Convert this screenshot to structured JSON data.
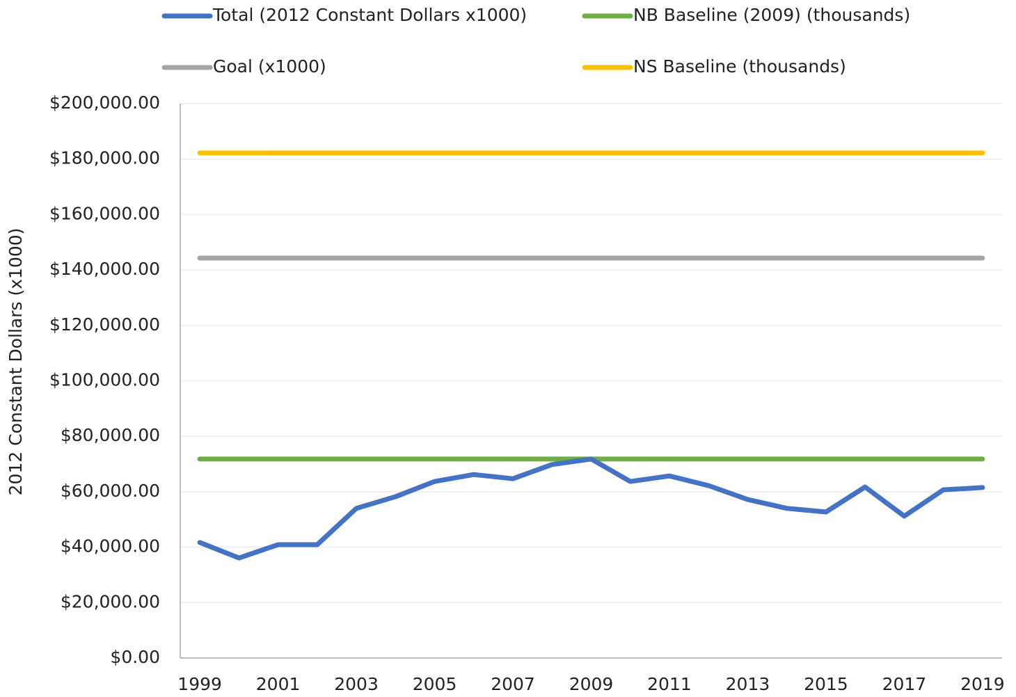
{
  "chart_data": {
    "type": "line",
    "y_label": "2012 Constant Dollars (x1000)",
    "categories": [
      "1999",
      null,
      "2001",
      null,
      "2003",
      null,
      "2005",
      null,
      "2007",
      null,
      "2009",
      null,
      "2011",
      null,
      "2013",
      null,
      "2015",
      null,
      "2017",
      null,
      "2019"
    ],
    "series": [
      {
        "name": "Total (2012 Constant Dollars x1000)",
        "color": "#4472c4",
        "values": [
          41700,
          36100,
          40900,
          40900,
          54000,
          58200,
          63700,
          66200,
          64700,
          69800,
          71800,
          63700,
          65700,
          62200,
          57200,
          54000,
          52700,
          61700,
          51200,
          60700,
          61500
        ]
      },
      {
        "name": "NB Baseline (2009) (thousands)",
        "color": "#70ad47",
        "values": [
          71800,
          71800,
          71800,
          71800,
          71800,
          71800,
          71800,
          71800,
          71800,
          71800,
          71800,
          71800,
          71800,
          71800,
          71800,
          71800,
          71800,
          71800,
          71800,
          71800,
          71800
        ]
      },
      {
        "name": "Goal (x1000)",
        "color": "#a5a5a5",
        "values": [
          144300,
          144300,
          144300,
          144300,
          144300,
          144300,
          144300,
          144300,
          144300,
          144300,
          144300,
          144300,
          144300,
          144300,
          144300,
          144300,
          144300,
          144300,
          144300,
          144300,
          144300
        ]
      },
      {
        "name": "NS Baseline (thousands)",
        "color": "#ffc000",
        "values": [
          182200,
          182200,
          182200,
          182200,
          182200,
          182200,
          182200,
          182200,
          182200,
          182200,
          182200,
          182200,
          182200,
          182200,
          182200,
          182200,
          182200,
          182200,
          182200,
          182200,
          182200
        ]
      }
    ],
    "ylim": [
      0,
      200000
    ],
    "yticks": [
      {
        "value": 0,
        "label": "$0.00"
      },
      {
        "value": 20000,
        "label": "$20,000.00"
      },
      {
        "value": 40000,
        "label": "$40,000.00"
      },
      {
        "value": 60000,
        "label": "$60,000.00"
      },
      {
        "value": 80000,
        "label": "$80,000.00"
      },
      {
        "value": 100000,
        "label": "$100,000.00"
      },
      {
        "value": 120000,
        "label": "$120,000.00"
      },
      {
        "value": 140000,
        "label": "$140,000.00"
      },
      {
        "value": 160000,
        "label": "$160,000.00"
      },
      {
        "value": 180000,
        "label": "$180,000.00"
      },
      {
        "value": 200000,
        "label": "$200,000.00"
      }
    ],
    "grid": true,
    "legend": "top"
  }
}
